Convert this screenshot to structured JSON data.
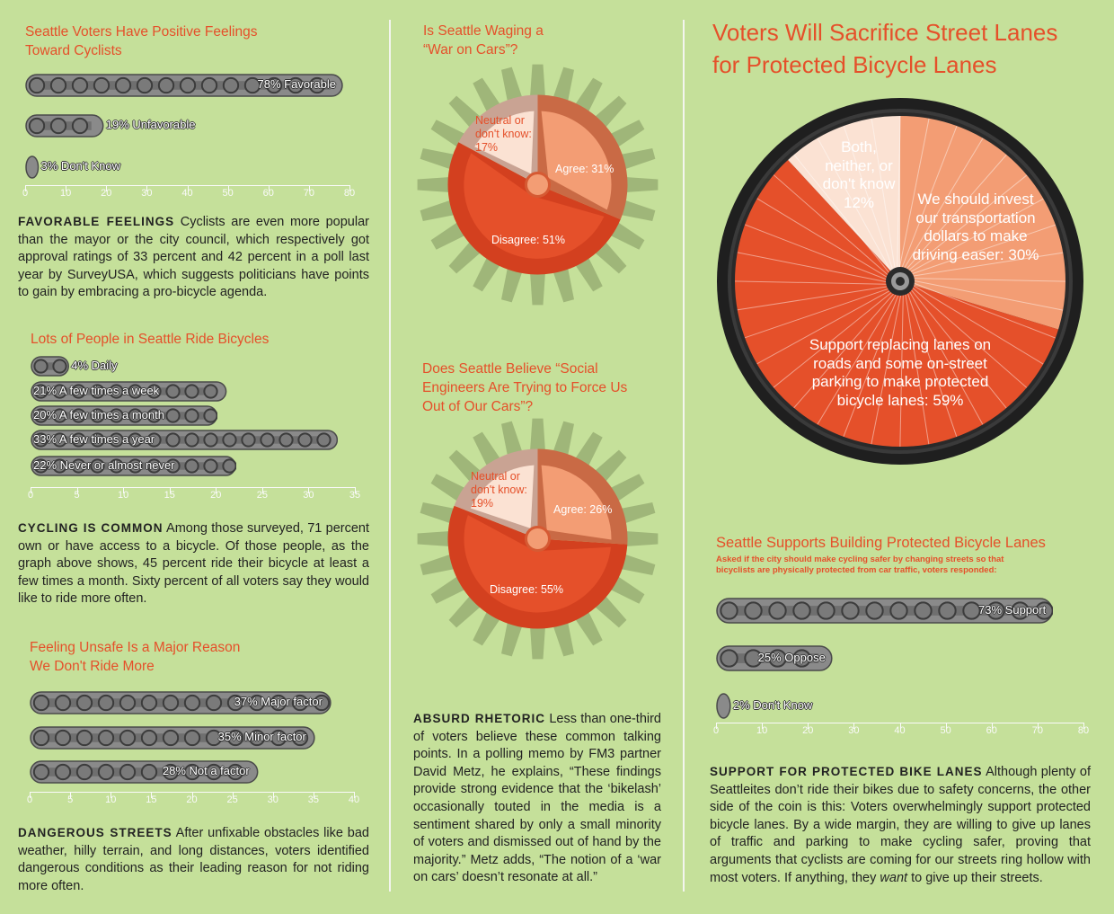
{
  "chart_data": [
    {
      "type": "bar",
      "title": "Seattle Voters Have Positive Feelings Toward Cyclists",
      "categories": [
        "Favorable",
        "Unfavorable",
        "Don't Know"
      ],
      "values": [
        78,
        19,
        3
      ],
      "labels": [
        "78% Favorable",
        "19% Unfavorable",
        "3% Don't Know"
      ],
      "xlim": [
        0,
        80
      ],
      "ticks": [
        0,
        10,
        20,
        30,
        40,
        50,
        60,
        70,
        80
      ]
    },
    {
      "type": "bar",
      "title": "Lots of People in Seattle Ride Bicycles",
      "categories": [
        "Daily",
        "A few times a week",
        "A few times a month",
        "A few times a year",
        "Never or almost never"
      ],
      "values": [
        4,
        21,
        20,
        33,
        22
      ],
      "labels": [
        "4% Daily",
        "21% A few times a week",
        "20% A few times a month",
        "33% A few times a year",
        "22% Never or almost never"
      ],
      "xlim": [
        0,
        35
      ],
      "ticks": [
        0,
        5,
        10,
        15,
        20,
        25,
        30,
        35
      ]
    },
    {
      "type": "bar",
      "title": "Feeling Unsafe Is a Major Reason We Don't Ride More",
      "categories": [
        "Major factor",
        "Minor factor",
        "Not a factor"
      ],
      "values": [
        37,
        35,
        28
      ],
      "labels": [
        "37% Major factor",
        "35% Minor factor",
        "28% Not a factor"
      ],
      "xlim": [
        0,
        40
      ],
      "ticks": [
        0,
        5,
        10,
        15,
        20,
        25,
        30,
        35,
        40
      ]
    },
    {
      "type": "pie",
      "title": "Is Seattle Waging a “War on Cars”?",
      "categories": [
        "Agree",
        "Disagree",
        "Neutral or don't know"
      ],
      "values": [
        31,
        51,
        17
      ],
      "labels": [
        "Agree: 31%",
        "Disagree: 51%",
        "Neutral or don't know: 17%"
      ]
    },
    {
      "type": "pie",
      "title": "Does Seattle Believe “Social Engineers Are Trying to Force Us Out of Our Cars”?",
      "categories": [
        "Agree",
        "Disagree",
        "Neutral or don't know"
      ],
      "values": [
        26,
        55,
        19
      ],
      "labels": [
        "Agree: 26%",
        "Disagree: 55%",
        "Neutral or don't know: 19%"
      ]
    },
    {
      "type": "pie",
      "title": "Voters Will Sacrifice Street Lanes for Protected Bicycle Lanes",
      "categories": [
        "We should invest our transportation dollars to make driving easer",
        "Support replacing lanes on roads and some on-street parking to make protected bicycle lanes",
        "Both, neither, or don't know"
      ],
      "values": [
        30,
        59,
        12
      ],
      "labels": [
        "We should invest our transportation dollars to make driving easer: 30%",
        "Support replacing lanes on roads and some on-street parking to make protected bicycle lanes: 59%",
        "Both, neither, or don't know 12%"
      ]
    },
    {
      "type": "bar",
      "title": "Seattle Supports Building Protected Bicycle Lanes",
      "subtitle": "Asked if the city should make cycling safer by changing streets so that bicyclists are physically protected from car traffic, voters responded:",
      "categories": [
        "Support",
        "Oppose",
        "Don't Know"
      ],
      "values": [
        73,
        25,
        2
      ],
      "labels": [
        "73% Support",
        "25% Oppose",
        "2% Don't Know"
      ],
      "xlim": [
        0,
        80
      ],
      "ticks": [
        0,
        10,
        20,
        30,
        40,
        50,
        60,
        70,
        80
      ]
    }
  ],
  "text": {
    "p1_head": "FAVORABLE FEELINGS",
    "p1_body": " Cyclists are even more popular than the mayor or the city council, which respectively got approval ratings of 33 percent and 42 percent in a poll last year by SurveyUSA, which suggests politicians have points to gain by embracing a pro-bicycle agenda.",
    "p2_head": "CYCLING IS COMMON",
    "p2_body": " Among those surveyed, 71 percent own or have access to a bicycle. Of those people, as the graph above shows, 45 percent ride their bicycle at least a few times a month. Sixty percent of all voters say they would like to ride more often.",
    "p3_head": "DANGEROUS STREETS",
    "p3_body": " After unfixable obstacles like bad weather, hilly terrain, and long distances, voters identified dangerous conditions as their leading reason for not riding more often.",
    "p4_head": "ABSURD RHETORIC",
    "p4_body": " Less than one-third of voters believe these common talking points. In a polling memo by FM3 partner David Metz, he explains, “These findings provide strong evidence that the ‘bikelash’ occasionally touted in the media is a sentiment shared by only a small minority of voters and dismissed out of hand by the majority.” Metz adds, “The notion of a ‘war on cars’ doesn’t resonate at all.”",
    "p5_head": "SUPPORT FOR PROTECTED BIKE LANES",
    "p5_body_a": " Although plenty of Seattleites don’t ride their bikes due to safety concerns, the other side of the coin is this: Voters overwhelmingly support protected bicycle lanes. By a wide margin, they are willing to give up lanes of traffic and parking to make cycling safer, proving that arguments that cyclists are coming for our streets ring hollow with most voters. If anything, they ",
    "p5_em": "want",
    "p5_body_b": " to give up their streets."
  },
  "colors": {
    "background": "#c5e09a",
    "accent": "#e5502a",
    "chain": "#8c8c8c",
    "disagree": "#e5502a",
    "agree": "#f39d74",
    "neutral": "#fbe2d3",
    "gear": "#9fb679"
  }
}
